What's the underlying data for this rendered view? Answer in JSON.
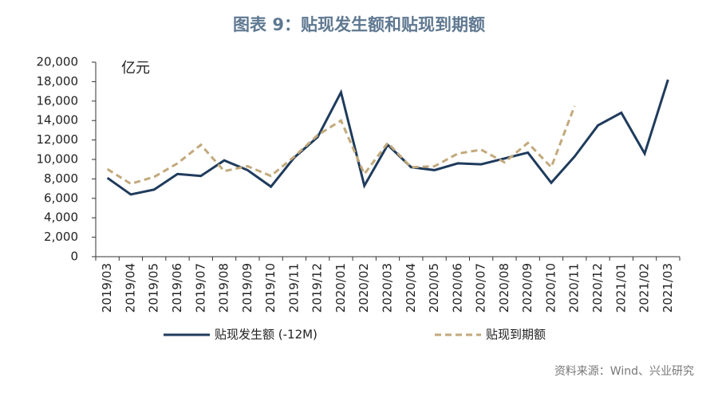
{
  "chart_data": {
    "type": "line",
    "title": "图表 9：贴现发生额和贴现到期额",
    "y_label": "亿元",
    "source": "资料来源：Wind、兴业研究",
    "categories": [
      "2019/03",
      "2019/04",
      "2019/05",
      "2019/06",
      "2019/07",
      "2019/08",
      "2019/09",
      "2019/10",
      "2019/11",
      "2019/12",
      "2020/01",
      "2020/02",
      "2020/03",
      "2020/04",
      "2020/05",
      "2020/06",
      "2020/07",
      "2020/08",
      "2020/09",
      "2020/10",
      "2020/11",
      "2020/12",
      "2021/01",
      "2021/02",
      "2021/03"
    ],
    "series": [
      {
        "name": "贴现发生额 (-12M)",
        "color": "#1f3b5c",
        "dash": false,
        "values": [
          8100,
          6400,
          6900,
          8500,
          8300,
          9900,
          8900,
          7200,
          10200,
          12300,
          16900,
          7300,
          11500,
          9200,
          8900,
          9600,
          9500,
          10100,
          10700,
          7600,
          10300,
          13500,
          14800,
          10600,
          18200
        ]
      },
      {
        "name": "贴现到期额",
        "color": "#c2a97c",
        "dash": true,
        "values": [
          9000,
          7500,
          8200,
          9600,
          11500,
          8800,
          9300,
          8300,
          10300,
          12500,
          14000,
          8500,
          11700,
          9200,
          9300,
          10600,
          11000,
          9700,
          11700,
          9200,
          15500,
          null,
          null,
          null,
          null
        ]
      }
    ],
    "ylim": [
      0,
      20000
    ],
    "yticks": [
      0,
      {
        "value": 2000,
        "label": "2,000"
      },
      {
        "value": 4000,
        "label": "4,000"
      },
      {
        "value": 6000,
        "label": "6,000"
      },
      {
        "value": 8000,
        "label": "8,000"
      },
      {
        "value": 10000,
        "label": "10,000"
      },
      {
        "value": 12000,
        "label": "12,000"
      },
      {
        "value": 14000,
        "label": "14,000"
      },
      {
        "value": 16000,
        "label": "16,000"
      },
      {
        "value": 18000,
        "label": "18,000"
      },
      {
        "value": 20000,
        "label": "20,000"
      }
    ],
    "legend": "bottom"
  }
}
